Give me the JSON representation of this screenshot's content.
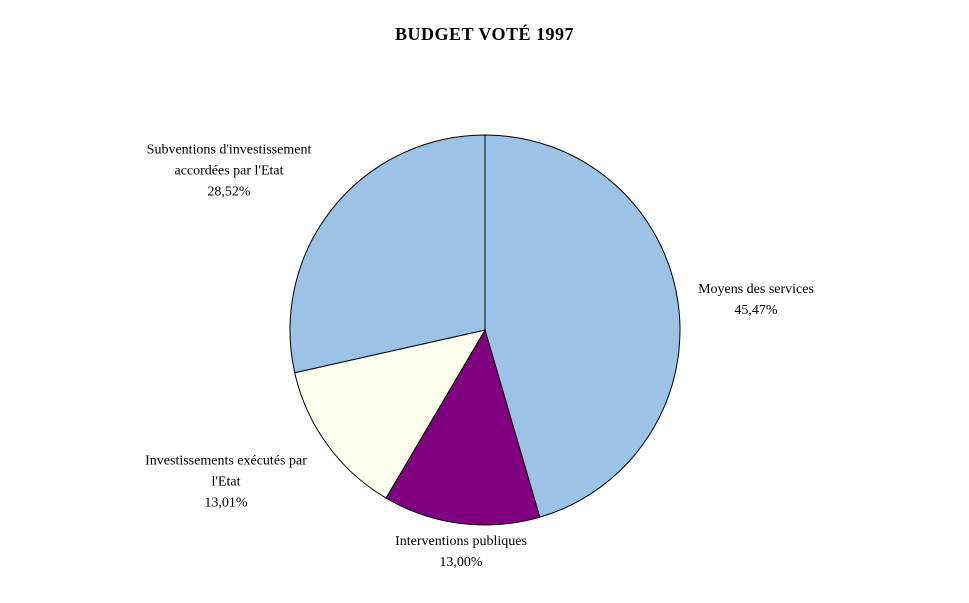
{
  "title": "BUDGET VOTÉ 1997",
  "chart_data": {
    "type": "pie",
    "title": "BUDGET VOTÉ 1997",
    "direction": "clockwise",
    "start_angle": "12-o-clock",
    "legend": "none",
    "outline_color": "#000000",
    "background": "#FFFFFF",
    "slices": [
      {
        "label": "Moyens des services",
        "label_lines": [
          "Moyens des services"
        ],
        "percent_label": "45,47%",
        "value": 45.47,
        "color": "#9CC3E6"
      },
      {
        "label": "Interventions publiques",
        "label_lines": [
          "Interventions publiques"
        ],
        "percent_label": "13,00%",
        "value": 13.0,
        "color": "#800080"
      },
      {
        "label": "Investissements exécutés par l'Etat",
        "label_lines": [
          "Investissements exécutés par",
          "l'Etat"
        ],
        "percent_label": "13,01%",
        "value": 13.01,
        "color": "#FFFFF0"
      },
      {
        "label": "Subventions d'investissement accordées par l'Etat",
        "label_lines": [
          "Subventions d'investissement",
          "accordées par l'Etat"
        ],
        "percent_label": "28,52%",
        "value": 28.52,
        "color": "#9CC3E6"
      }
    ]
  }
}
